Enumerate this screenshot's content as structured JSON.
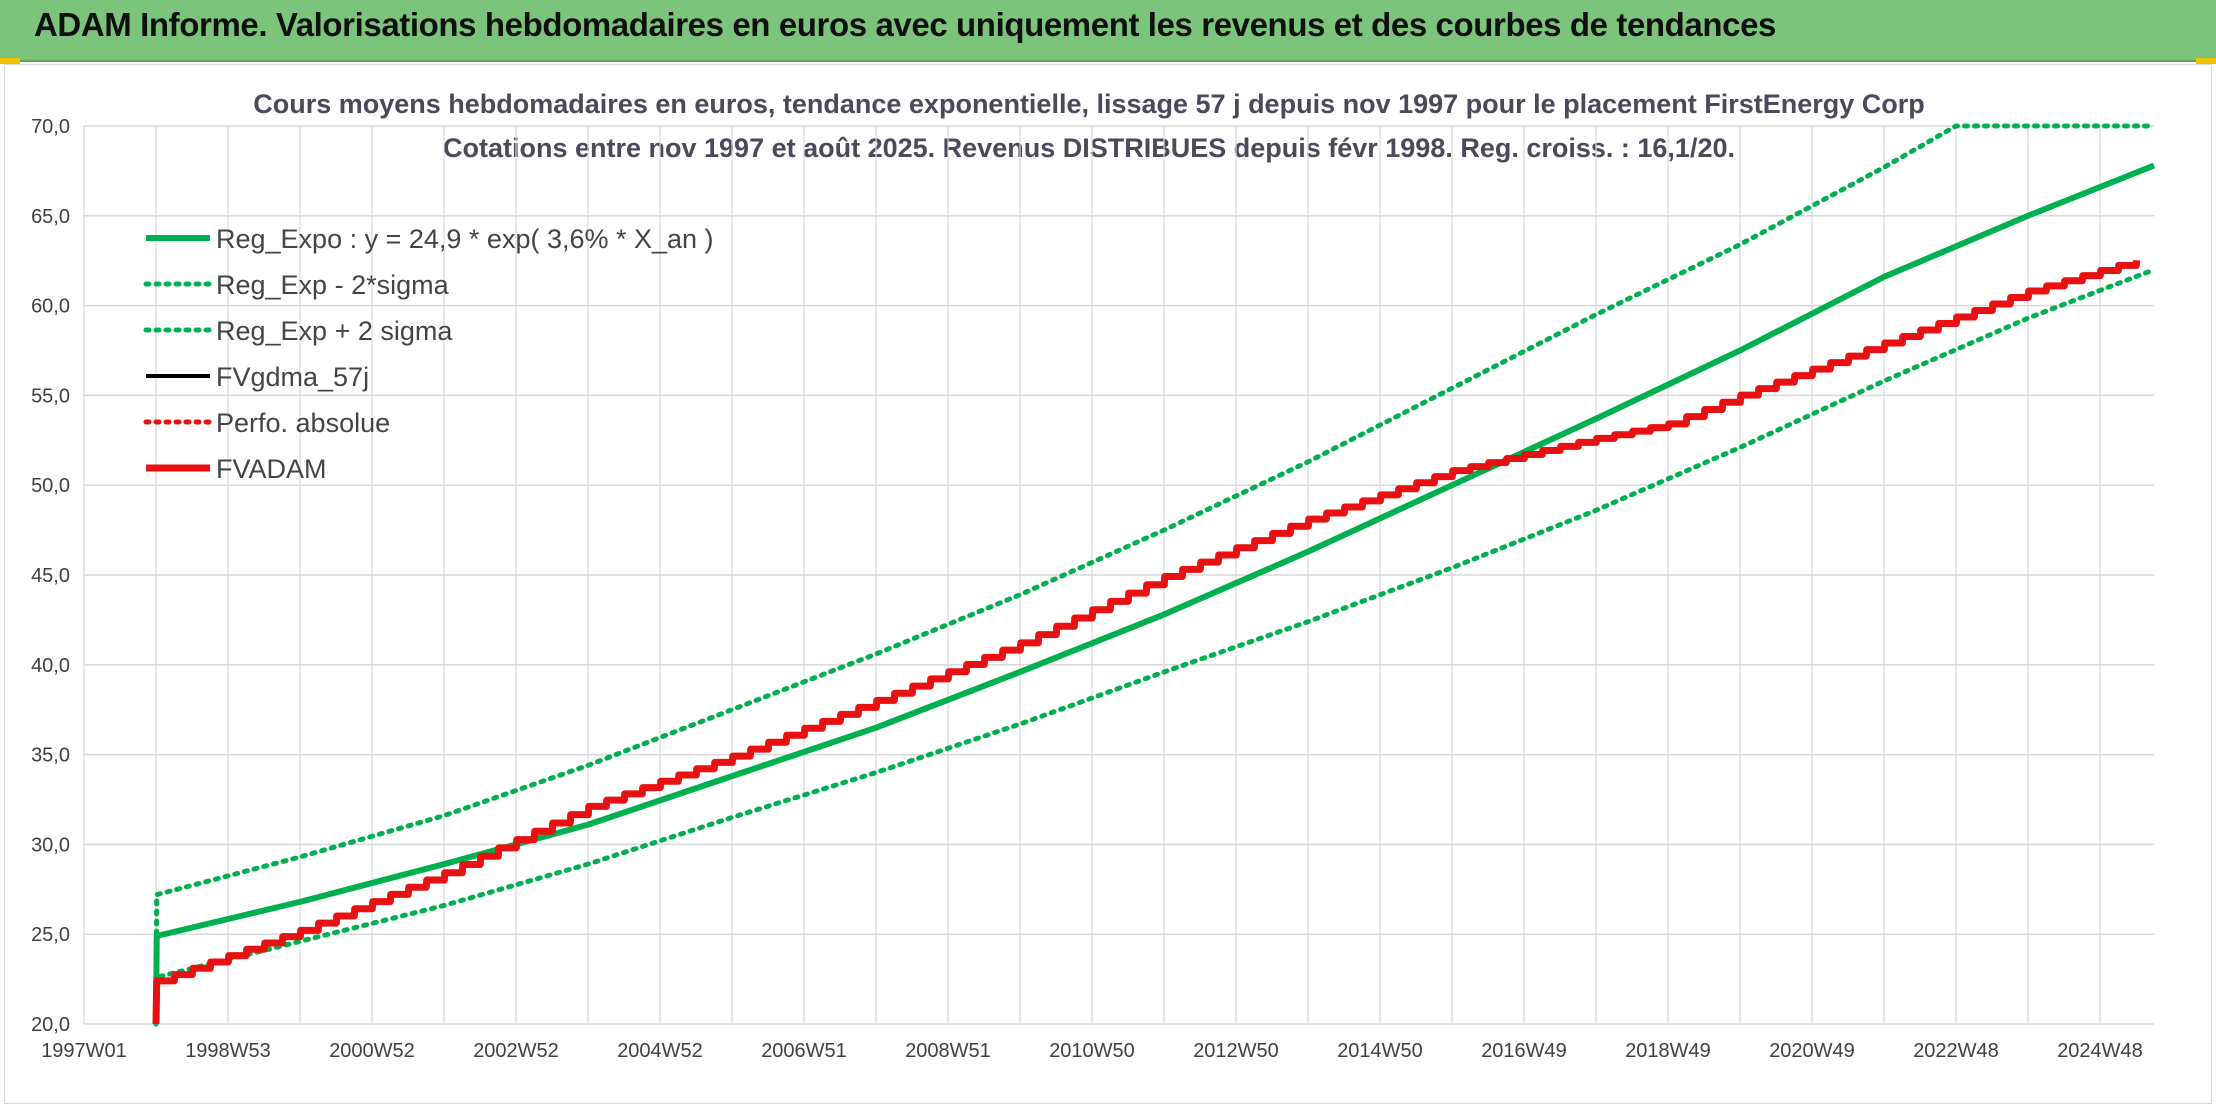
{
  "banner": {
    "title": "ADAM Informe. Valorisations hebdomadaires en euros avec uniquement les revenus et des courbes de tendances"
  },
  "colors": {
    "banner_bg": "#7cc47c",
    "trend_green": "#00b050",
    "fvadam_red": "#e81010",
    "fvgdma_black": "#000000",
    "grid": "#d9d9d9"
  },
  "chart_data": {
    "type": "line",
    "title": "Cours moyens hebdomadaires en euros, tendance exponentielle, lissage 57 j depuis nov 1997 pour le placement FirstEnergy Corp",
    "subtitle": "Cotations entre nov 1997 et août 2025. Revenus DISTRIBUES depuis févr 1998. Reg. croiss. : 16,1/20.",
    "xlabel": "",
    "ylabel": "",
    "x_tick_labels": [
      "1997W01",
      "1998W53",
      "2000W52",
      "2002W52",
      "2004W52",
      "2006W51",
      "2008W51",
      "2010W50",
      "2012W50",
      "2014W50",
      "2016W49",
      "2018W49",
      "2020W49",
      "2022W48",
      "2024W48"
    ],
    "x_tick_years": [
      1997.0,
      1999.0,
      2001.0,
      2003.0,
      2005.0,
      2007.0,
      2009.0,
      2011.0,
      2013.0,
      2015.0,
      2017.0,
      2019.0,
      2021.0,
      2023.0,
      2025.0
    ],
    "xlim": [
      1997.0,
      2025.75
    ],
    "ylim": [
      20,
      70
    ],
    "y_ticks": [
      "20,0",
      "25,0",
      "30,0",
      "35,0",
      "40,0",
      "45,0",
      "50,0",
      "55,0",
      "60,0",
      "65,0",
      "70,0"
    ],
    "y_tick_values": [
      20,
      25,
      30,
      35,
      40,
      45,
      50,
      55,
      60,
      65,
      70
    ],
    "grid": true,
    "legend_position": "top-left",
    "series": [
      {
        "name": "Reg_Expo : y = 24,9 * exp( 3,6% *  X_an )",
        "style": "solid-thick",
        "color": "#00b050",
        "x": [
          1998.0,
          1998.01,
          2000,
          2002,
          2004,
          2006,
          2008,
          2010,
          2012,
          2014,
          2016,
          2018,
          2019,
          2020,
          2022,
          2024,
          2025.75
        ],
        "y": [
          20.0,
          24.9,
          26.8,
          28.9,
          31.1,
          33.8,
          36.5,
          39.6,
          42.8,
          46.3,
          50.0,
          53.7,
          55.6,
          57.5,
          61.6,
          65.0,
          67.8
        ]
      },
      {
        "name": "Reg_Exp - 2*sigma",
        "style": "dotted",
        "color": "#00b050",
        "x": [
          1998.0,
          1998.01,
          2000,
          2002,
          2004,
          2006,
          2008,
          2010,
          2012,
          2014,
          2016,
          2018,
          2020,
          2022,
          2024,
          2025.75
        ],
        "y": [
          20.0,
          22.6,
          24.6,
          26.6,
          28.9,
          31.5,
          34.0,
          36.7,
          39.6,
          42.4,
          45.4,
          48.6,
          52.1,
          55.8,
          59.3,
          62.0
        ]
      },
      {
        "name": "Reg_Exp + 2 sigma",
        "style": "dotted",
        "color": "#00b050",
        "x": [
          1998.0,
          1998.01,
          2000,
          2002,
          2004,
          2006,
          2008,
          2010,
          2012,
          2014,
          2016,
          2018,
          2020,
          2022,
          2023.0,
          2025.75
        ],
        "y": [
          20.0,
          27.2,
          29.3,
          31.6,
          34.4,
          37.5,
          40.6,
          43.9,
          47.5,
          51.3,
          55.4,
          59.5,
          63.4,
          67.7,
          70.0,
          70.0
        ]
      },
      {
        "name": "FVgdma_57j",
        "style": "solid",
        "color": "#000000",
        "x": [],
        "y": []
      },
      {
        "name": "Perfo. absolue",
        "style": "dotted",
        "color": "#e81010",
        "x": [],
        "y": []
      },
      {
        "name": "FVADAM",
        "style": "solid-thick-stepped",
        "color": "#e81010",
        "x": [
          1998.0,
          1998.01,
          2000,
          2002,
          2004,
          2006,
          2008,
          2010,
          2012,
          2014,
          2016,
          2018,
          2019,
          2020,
          2022,
          2024,
          2025.75
        ],
        "y": [
          20.0,
          22.4,
          25.2,
          28.4,
          32.1,
          34.9,
          38.0,
          41.2,
          44.9,
          48.1,
          50.8,
          52.6,
          53.4,
          55.0,
          57.9,
          60.8,
          62.8
        ]
      }
    ]
  }
}
